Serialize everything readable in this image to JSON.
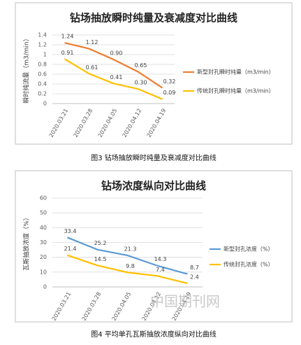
{
  "chart_data": [
    {
      "type": "line",
      "title": "钻场抽放瞬时纯量及衰减度对比曲线",
      "y_label": "瞬时纯流量（m3/min）",
      "caption": "图3 钻场抽放瞬时纯量及衰减度对比曲线",
      "categories": [
        "2020.03.21",
        "2020.03.28",
        "2020.04.05",
        "2020.04.12",
        "2020.04.19"
      ],
      "series": [
        {
          "name": "新型封孔瞬时纯量（m3/min）",
          "color": "#ed7d31",
          "values": [
            1.24,
            1.12,
            0.9,
            0.65,
            0.32
          ],
          "value_labels": [
            "1.24",
            "1.12",
            "0.90",
            "0.65",
            "0.32"
          ]
        },
        {
          "name": "传统封孔瞬时纯量（m3/min）",
          "color": "#ffc000",
          "values": [
            0.91,
            0.61,
            0.41,
            0.3,
            0.09
          ],
          "value_labels": [
            "0.91",
            "0.61",
            "0.41",
            "0.30",
            "0.09"
          ]
        }
      ],
      "ylim": [
        0,
        1.4
      ],
      "yticks": [
        0,
        0.2,
        0.4,
        0.6,
        0.8,
        1,
        1.2,
        1.4
      ],
      "grid": true,
      "legend": "right"
    },
    {
      "type": "line",
      "title": "钻场浓度纵向对比曲线",
      "y_label": "瓦斯抽放浓度（%）",
      "caption": "图4 平均单孔瓦斯抽放浓度纵向对比曲线",
      "watermark": "中国期刊网",
      "categories": [
        "2020.03.21",
        "2020.03.28",
        "2020.04.05",
        "2020.04.12",
        "2020.04.19"
      ],
      "series": [
        {
          "name": "新型封孔浓度（%）",
          "color": "#5b9bd5",
          "values": [
            33.4,
            25.2,
            21.3,
            14.3,
            8.7
          ]
        },
        {
          "name": "传统封孔浓度（%）",
          "color": "#ffc000",
          "values": [
            21.4,
            14.5,
            9.8,
            7.4,
            2.4
          ]
        }
      ],
      "ylim": [
        0,
        60
      ],
      "yticks": [
        0,
        10,
        20,
        30,
        40,
        50,
        60
      ],
      "grid": true,
      "legend": "right"
    }
  ]
}
